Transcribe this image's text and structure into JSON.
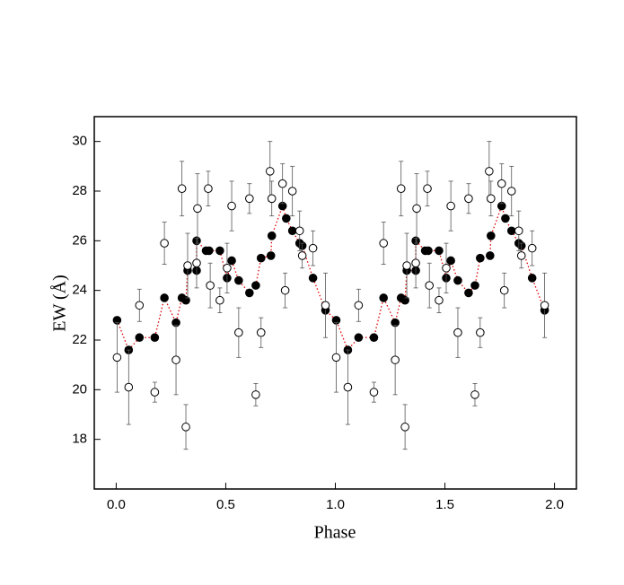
{
  "chart_data": {
    "type": "scatter",
    "x_label": "Phase",
    "y_label": "EW (Å)",
    "xlim": [
      -0.1,
      2.1
    ],
    "ylim": [
      16,
      31
    ],
    "xticks": [
      {
        "value": 0,
        "label": "0.0"
      },
      {
        "value": 0.5,
        "label": "0.5"
      },
      {
        "value": 1,
        "label": "1.0"
      },
      {
        "value": 1.5,
        "label": "1.5"
      },
      {
        "value": 2,
        "label": "2.0"
      }
    ],
    "yticks": [
      18,
      20,
      22,
      24,
      26,
      28,
      30
    ],
    "series": [
      {
        "marker": "filled",
        "color": "#000000",
        "line_color": "#e00000",
        "line_style": "dotted",
        "x": [
          0.004,
          0.057,
          0.106,
          0.176,
          0.22,
          0.273,
          0.3,
          0.318,
          0.326,
          0.367,
          0.367,
          0.41,
          0.424,
          0.473,
          0.506,
          0.527,
          0.559,
          0.608,
          0.637,
          0.661,
          0.706,
          0.71,
          0.759,
          0.776,
          0.804,
          0.837,
          0.849,
          0.898,
          0.955,
          1.004,
          1.057,
          1.106,
          1.176,
          1.22,
          1.273,
          1.3,
          1.318,
          1.326,
          1.367,
          1.367,
          1.41,
          1.424,
          1.473,
          1.506,
          1.527,
          1.559,
          1.608,
          1.637,
          1.661,
          1.706,
          1.71,
          1.759,
          1.776,
          1.804,
          1.837,
          1.849,
          1.898,
          1.955
        ],
        "values": [
          22.8,
          21.6,
          22.1,
          22.1,
          23.7,
          22.7,
          23.7,
          23.6,
          24.8,
          24.8,
          26.0,
          25.6,
          25.6,
          25.6,
          24.5,
          25.2,
          24.4,
          23.9,
          24.2,
          25.3,
          25.4,
          26.2,
          27.4,
          26.9,
          26.4,
          25.9,
          25.8,
          24.5,
          23.2,
          22.8,
          21.6,
          22.1,
          22.1,
          23.7,
          22.7,
          23.7,
          23.6,
          24.8,
          24.8,
          26.0,
          25.6,
          25.6,
          25.6,
          24.5,
          25.2,
          24.4,
          23.9,
          24.2,
          25.3,
          25.4,
          26.2,
          27.4,
          26.9,
          26.4,
          25.9,
          25.8,
          24.5,
          23.2
        ]
      },
      {
        "marker": "open",
        "color": "#000000",
        "x": [
          0.004,
          0.057,
          0.106,
          0.176,
          0.22,
          0.273,
          0.3,
          0.318,
          0.326,
          0.367,
          0.371,
          0.42,
          0.429,
          0.473,
          0.506,
          0.527,
          0.559,
          0.608,
          0.637,
          0.661,
          0.702,
          0.71,
          0.759,
          0.771,
          0.804,
          0.837,
          0.849,
          0.898,
          0.955,
          1.004,
          1.057,
          1.106,
          1.176,
          1.22,
          1.273,
          1.3,
          1.318,
          1.326,
          1.367,
          1.371,
          1.42,
          1.429,
          1.473,
          1.506,
          1.527,
          1.559,
          1.608,
          1.637,
          1.661,
          1.702,
          1.71,
          1.759,
          1.771,
          1.804,
          1.837,
          1.849,
          1.898,
          1.955
        ],
        "values": [
          21.3,
          20.1,
          23.4,
          19.9,
          25.9,
          21.2,
          28.1,
          18.5,
          25.0,
          25.1,
          27.3,
          28.1,
          24.2,
          23.6,
          24.9,
          27.4,
          22.3,
          27.7,
          19.8,
          22.3,
          28.8,
          27.7,
          28.3,
          24.0,
          28.0,
          26.4,
          25.4,
          25.7,
          23.4,
          21.3,
          20.1,
          23.4,
          19.9,
          25.9,
          21.2,
          28.1,
          18.5,
          25.0,
          25.1,
          27.3,
          28.1,
          24.2,
          23.6,
          24.9,
          27.4,
          22.3,
          27.7,
          19.8,
          22.3,
          28.8,
          27.7,
          28.3,
          24.0,
          28.0,
          26.4,
          25.4,
          25.7,
          23.4
        ],
        "errors": [
          1.4,
          1.5,
          0.65,
          0.4,
          0.85,
          1.4,
          1.1,
          0.9,
          1.3,
          1.0,
          1.4,
          0.7,
          0.9,
          0.5,
          1.0,
          1.0,
          1.0,
          0.6,
          0.45,
          0.6,
          1.2,
          0.7,
          0.8,
          0.7,
          1.0,
          0.8,
          0.5,
          0.7,
          1.3,
          1.4,
          1.5,
          0.65,
          0.4,
          0.85,
          1.4,
          1.1,
          0.9,
          1.3,
          1.0,
          1.4,
          0.7,
          0.9,
          0.5,
          1.0,
          1.0,
          1.0,
          0.6,
          0.45,
          0.6,
          1.2,
          0.7,
          0.8,
          0.7,
          1.0,
          0.8,
          0.5,
          0.7,
          1.3
        ]
      }
    ]
  }
}
